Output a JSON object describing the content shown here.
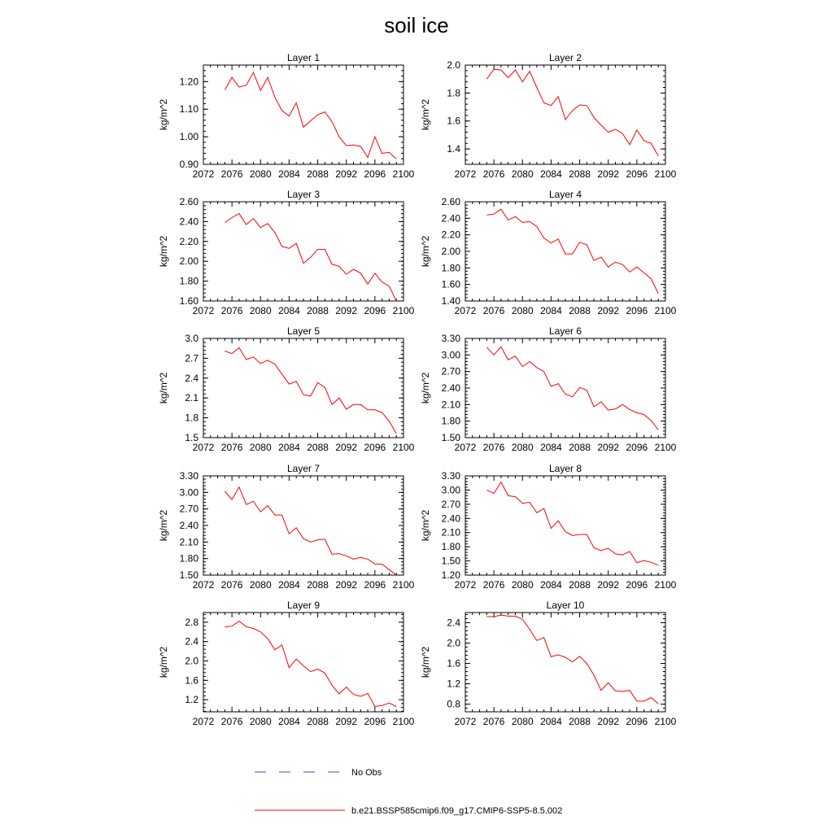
{
  "title": "soil ice",
  "legend": [
    {
      "label": "No Obs",
      "color": "#4a4acc",
      "style": "dashed"
    },
    {
      "label": "b.e21.BSSP585cmip6.f09_g17.CMIP6-SSP5-8.5.002",
      "color": "#ff0000",
      "style": "solid"
    }
  ],
  "chart_data": [
    {
      "type": "line",
      "title": "Layer 1",
      "ylabel": "kg/m^2",
      "xlim": [
        2072,
        2100
      ],
      "xticks": [
        "2072",
        "2076",
        "2080",
        "2084",
        "2088",
        "2092",
        "2096",
        "2100"
      ],
      "ylim": [
        0.9,
        1.26
      ],
      "yticks": [
        "0.90",
        "1.00",
        "1.10",
        "1.20"
      ],
      "series": [
        {
          "color": "#ff0000",
          "x": [
            2075,
            2076,
            2077,
            2078,
            2079,
            2080,
            2081,
            2082,
            2083,
            2084,
            2085,
            2086,
            2087,
            2088,
            2089,
            2090,
            2091,
            2092,
            2093,
            2094,
            2095,
            2096,
            2097,
            2098,
            2099
          ],
          "values": [
            1.17,
            1.215,
            1.18,
            1.187,
            1.233,
            1.168,
            1.215,
            1.143,
            1.095,
            1.075,
            1.123,
            1.035,
            1.058,
            1.08,
            1.09,
            1.055,
            1.0,
            0.968,
            0.97,
            0.965,
            0.925,
            1.0,
            0.94,
            0.943,
            0.92
          ]
        }
      ]
    },
    {
      "type": "line",
      "title": "Layer 2",
      "ylabel": "kg/m^2",
      "xlim": [
        2072,
        2100
      ],
      "xticks": [
        "2072",
        "2076",
        "2080",
        "2084",
        "2088",
        "2092",
        "2096",
        "2100"
      ],
      "ylim": [
        1.29,
        2.0
      ],
      "yticks": [
        "1.4",
        "1.6",
        "1.8",
        "2.0"
      ],
      "series": [
        {
          "color": "#ff0000",
          "x": [
            2075,
            2076,
            2077,
            2078,
            2079,
            2080,
            2081,
            2082,
            2083,
            2084,
            2085,
            2086,
            2087,
            2088,
            2089,
            2090,
            2091,
            2092,
            2093,
            2094,
            2095,
            2096,
            2097,
            2098,
            2099
          ],
          "values": [
            1.9,
            1.97,
            1.965,
            1.91,
            1.965,
            1.88,
            1.955,
            1.84,
            1.73,
            1.71,
            1.775,
            1.61,
            1.675,
            1.715,
            1.71,
            1.625,
            1.57,
            1.52,
            1.54,
            1.51,
            1.43,
            1.535,
            1.46,
            1.44,
            1.35
          ]
        }
      ]
    },
    {
      "type": "line",
      "title": "Layer 3",
      "ylabel": "kg/m^2",
      "xlim": [
        2072,
        2100
      ],
      "xticks": [
        "2072",
        "2076",
        "2080",
        "2084",
        "2088",
        "2092",
        "2096",
        "2100"
      ],
      "ylim": [
        1.6,
        2.6
      ],
      "yticks": [
        "1.60",
        "1.80",
        "2.00",
        "2.20",
        "2.40",
        "2.60"
      ],
      "series": [
        {
          "color": "#ff0000",
          "x": [
            2075,
            2076,
            2077,
            2078,
            2079,
            2080,
            2081,
            2082,
            2083,
            2084,
            2085,
            2086,
            2087,
            2088,
            2089,
            2090,
            2091,
            2092,
            2093,
            2094,
            2095,
            2096,
            2097,
            2098,
            2099
          ],
          "values": [
            2.39,
            2.44,
            2.48,
            2.37,
            2.43,
            2.34,
            2.38,
            2.29,
            2.15,
            2.13,
            2.18,
            1.98,
            2.04,
            2.12,
            2.12,
            1.97,
            1.95,
            1.87,
            1.92,
            1.88,
            1.77,
            1.88,
            1.79,
            1.75,
            1.6
          ]
        }
      ]
    },
    {
      "type": "line",
      "title": "Layer 4",
      "ylabel": "kg/m^2",
      "xlim": [
        2072,
        2100
      ],
      "xticks": [
        "2072",
        "2076",
        "2080",
        "2084",
        "2088",
        "2092",
        "2096",
        "2100"
      ],
      "ylim": [
        1.4,
        2.6
      ],
      "yticks": [
        "1.40",
        "1.60",
        "1.80",
        "2.00",
        "2.20",
        "2.40",
        "2.60"
      ],
      "series": [
        {
          "color": "#ff0000",
          "x": [
            2075,
            2076,
            2077,
            2078,
            2079,
            2080,
            2081,
            2082,
            2083,
            2084,
            2085,
            2086,
            2087,
            2088,
            2089,
            2090,
            2091,
            2092,
            2093,
            2094,
            2095,
            2096,
            2097,
            2098,
            2099
          ],
          "values": [
            2.44,
            2.45,
            2.51,
            2.38,
            2.42,
            2.35,
            2.36,
            2.3,
            2.16,
            2.1,
            2.15,
            1.97,
            1.97,
            2.11,
            2.08,
            1.89,
            1.93,
            1.81,
            1.87,
            1.84,
            1.75,
            1.81,
            1.74,
            1.67,
            1.49
          ]
        }
      ]
    },
    {
      "type": "line",
      "title": "Layer 5",
      "ylabel": "kg/m^2",
      "xlim": [
        2072,
        2100
      ],
      "xticks": [
        "2072",
        "2076",
        "2080",
        "2084",
        "2088",
        "2092",
        "2096",
        "2100"
      ],
      "ylim": [
        1.5,
        3.0
      ],
      "yticks": [
        "1.5",
        "1.8",
        "2.1",
        "2.4",
        "2.7",
        "3.0"
      ],
      "series": [
        {
          "color": "#ff0000",
          "x": [
            2075,
            2076,
            2077,
            2078,
            2079,
            2080,
            2081,
            2082,
            2083,
            2084,
            2085,
            2086,
            2087,
            2088,
            2089,
            2090,
            2091,
            2092,
            2093,
            2094,
            2095,
            2096,
            2097,
            2098,
            2099
          ],
          "values": [
            2.81,
            2.77,
            2.86,
            2.68,
            2.72,
            2.62,
            2.67,
            2.61,
            2.46,
            2.31,
            2.35,
            2.15,
            2.13,
            2.33,
            2.26,
            2.0,
            2.1,
            1.93,
            2.0,
            2.0,
            1.92,
            1.92,
            1.88,
            1.75,
            1.56
          ]
        }
      ]
    },
    {
      "type": "line",
      "title": "Layer 6",
      "ylabel": "kg/m^2",
      "xlim": [
        2072,
        2100
      ],
      "xticks": [
        "2072",
        "2076",
        "2080",
        "2084",
        "2088",
        "2092",
        "2096",
        "2100"
      ],
      "ylim": [
        1.5,
        3.3
      ],
      "yticks": [
        "1.50",
        "1.80",
        "2.10",
        "2.40",
        "2.70",
        "3.00",
        "3.30"
      ],
      "series": [
        {
          "color": "#ff0000",
          "x": [
            2075,
            2076,
            2077,
            2078,
            2079,
            2080,
            2081,
            2082,
            2083,
            2084,
            2085,
            2086,
            2087,
            2088,
            2089,
            2090,
            2091,
            2092,
            2093,
            2094,
            2095,
            2096,
            2097,
            2098,
            2099
          ],
          "values": [
            3.14,
            3.0,
            3.15,
            2.91,
            2.98,
            2.79,
            2.88,
            2.77,
            2.7,
            2.43,
            2.48,
            2.29,
            2.24,
            2.41,
            2.36,
            2.06,
            2.15,
            2.0,
            2.02,
            2.1,
            2.01,
            1.95,
            1.92,
            1.81,
            1.64
          ]
        }
      ]
    },
    {
      "type": "line",
      "title": "Layer 7",
      "ylabel": "kg/m^2",
      "xlim": [
        2072,
        2100
      ],
      "xticks": [
        "2072",
        "2076",
        "2080",
        "2084",
        "2088",
        "2092",
        "2096",
        "2100"
      ],
      "ylim": [
        1.5,
        3.3
      ],
      "yticks": [
        "1.50",
        "1.80",
        "2.10",
        "2.40",
        "2.70",
        "3.00",
        "3.30"
      ],
      "series": [
        {
          "color": "#ff0000",
          "x": [
            2075,
            2076,
            2077,
            2078,
            2079,
            2080,
            2081,
            2082,
            2083,
            2084,
            2085,
            2086,
            2087,
            2088,
            2089,
            2090,
            2091,
            2092,
            2093,
            2094,
            2095,
            2096,
            2097,
            2098,
            2099
          ],
          "values": [
            3.02,
            2.87,
            3.1,
            2.78,
            2.84,
            2.65,
            2.76,
            2.59,
            2.59,
            2.25,
            2.36,
            2.16,
            2.1,
            2.14,
            2.15,
            1.88,
            1.89,
            1.85,
            1.79,
            1.82,
            1.79,
            1.7,
            1.7,
            1.6,
            1.5
          ]
        }
      ]
    },
    {
      "type": "line",
      "title": "Layer 8",
      "ylabel": "kg/m^2",
      "xlim": [
        2072,
        2100
      ],
      "xticks": [
        "2072",
        "2076",
        "2080",
        "2084",
        "2088",
        "2092",
        "2096",
        "2100"
      ],
      "ylim": [
        1.2,
        3.3
      ],
      "yticks": [
        "1.20",
        "1.50",
        "1.80",
        "2.10",
        "2.40",
        "2.70",
        "3.00",
        "3.30"
      ],
      "series": [
        {
          "color": "#ff0000",
          "x": [
            2075,
            2076,
            2077,
            2078,
            2079,
            2080,
            2081,
            2082,
            2083,
            2084,
            2085,
            2086,
            2087,
            2088,
            2089,
            2090,
            2091,
            2092,
            2093,
            2094,
            2095,
            2096,
            2097,
            2098,
            2099
          ],
          "values": [
            3.0,
            2.93,
            3.17,
            2.88,
            2.86,
            2.72,
            2.74,
            2.52,
            2.61,
            2.19,
            2.35,
            2.12,
            2.04,
            2.06,
            2.06,
            1.78,
            1.72,
            1.77,
            1.65,
            1.63,
            1.7,
            1.46,
            1.51,
            1.47,
            1.41
          ]
        }
      ]
    },
    {
      "type": "line",
      "title": "Layer 9",
      "ylabel": "kg/m^2",
      "xlim": [
        2072,
        2100
      ],
      "xticks": [
        "2072",
        "2076",
        "2080",
        "2084",
        "2088",
        "2092",
        "2096",
        "2100"
      ],
      "ylim": [
        0.95,
        3.0
      ],
      "yticks": [
        "1.2",
        "1.6",
        "2.0",
        "2.4",
        "2.8"
      ],
      "series": [
        {
          "color": "#ff0000",
          "x": [
            2075,
            2076,
            2077,
            2078,
            2079,
            2080,
            2081,
            2082,
            2083,
            2084,
            2085,
            2086,
            2087,
            2088,
            2089,
            2090,
            2091,
            2092,
            2093,
            2094,
            2095,
            2096,
            2097,
            2098,
            2099
          ],
          "values": [
            2.7,
            2.72,
            2.82,
            2.71,
            2.67,
            2.6,
            2.46,
            2.23,
            2.33,
            1.86,
            2.04,
            1.9,
            1.78,
            1.83,
            1.75,
            1.5,
            1.32,
            1.46,
            1.31,
            1.27,
            1.33,
            1.06,
            1.08,
            1.13,
            1.06
          ]
        }
      ]
    },
    {
      "type": "line",
      "title": "Layer 10",
      "ylabel": "kg/m^2",
      "xlim": [
        2072,
        2100
      ],
      "xticks": [
        "2072",
        "2076",
        "2080",
        "2084",
        "2088",
        "2092",
        "2096",
        "2100"
      ],
      "ylim": [
        0.65,
        2.6
      ],
      "yticks": [
        "0.8",
        "1.2",
        "1.6",
        "2.0",
        "2.4"
      ],
      "series": [
        {
          "color": "#ff0000",
          "x": [
            2075,
            2076,
            2077,
            2078,
            2079,
            2080,
            2081,
            2082,
            2083,
            2084,
            2085,
            2086,
            2087,
            2088,
            2089,
            2090,
            2091,
            2092,
            2093,
            2094,
            2095,
            2096,
            2097,
            2098,
            2099
          ],
          "values": [
            2.52,
            2.52,
            2.55,
            2.53,
            2.53,
            2.47,
            2.27,
            2.05,
            2.11,
            1.73,
            1.77,
            1.72,
            1.63,
            1.74,
            1.6,
            1.37,
            1.07,
            1.22,
            1.06,
            1.05,
            1.07,
            0.86,
            0.86,
            0.93,
            0.81
          ]
        }
      ]
    }
  ]
}
